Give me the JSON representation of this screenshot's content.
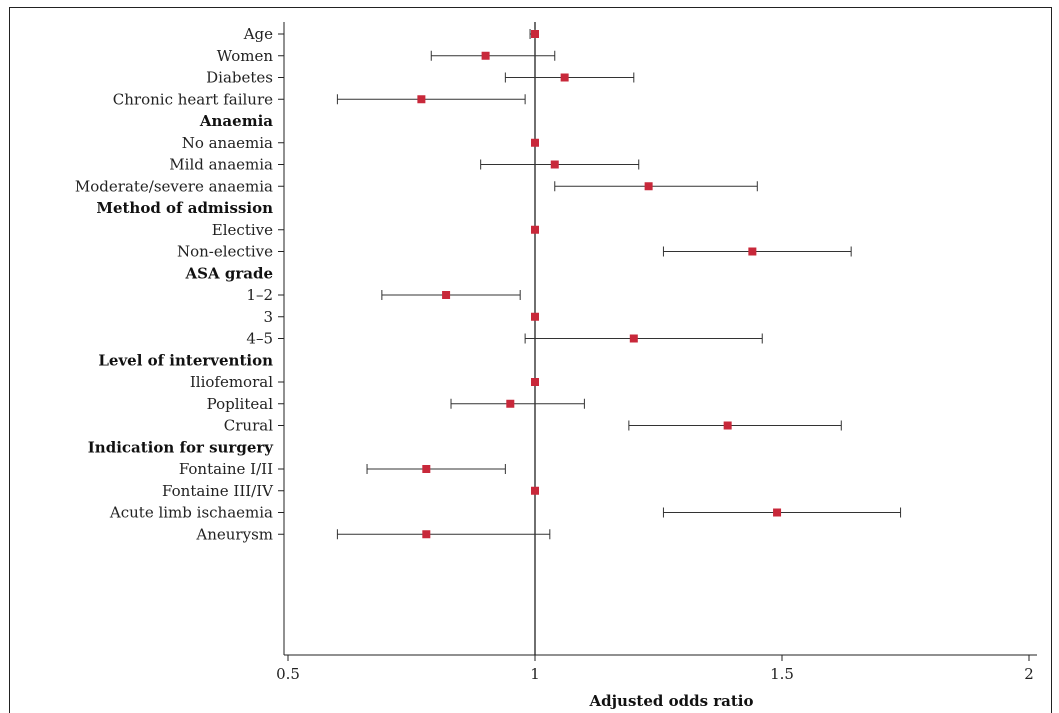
{
  "chart_data": {
    "type": "forest",
    "xlabel": "Adjusted odds ratio",
    "xlim": [
      0.5,
      2
    ],
    "xticks": [
      {
        "value": 0.5,
        "label": "0.5"
      },
      {
        "value": 1,
        "label": "1"
      },
      {
        "value": 1.5,
        "label": "1.5"
      },
      {
        "value": 2,
        "label": "2"
      }
    ],
    "reference_line": 1,
    "marker_color": "#c8283a",
    "rows": [
      {
        "label": "Age",
        "or": 1.0,
        "lo": 0.99,
        "hi": 1.0
      },
      {
        "label": "Women",
        "or": 0.9,
        "lo": 0.79,
        "hi": 1.04
      },
      {
        "label": "Diabetes",
        "or": 1.06,
        "lo": 0.94,
        "hi": 1.2
      },
      {
        "label": "Chronic heart failure",
        "or": 0.77,
        "lo": 0.6,
        "hi": 0.98
      },
      {
        "header": "Anaemia"
      },
      {
        "label": "No anaemia",
        "or": 1.0
      },
      {
        "label": "Mild anaemia",
        "or": 1.04,
        "lo": 0.89,
        "hi": 1.21
      },
      {
        "label": "Moderate/severe anaemia",
        "or": 1.23,
        "lo": 1.04,
        "hi": 1.45
      },
      {
        "header": "Method of admission"
      },
      {
        "label": "Elective",
        "or": 1.0
      },
      {
        "label": "Non-elective",
        "or": 1.44,
        "lo": 1.26,
        "hi": 1.64
      },
      {
        "header": "ASA grade"
      },
      {
        "label": "1–2",
        "or": 0.82,
        "lo": 0.69,
        "hi": 0.97
      },
      {
        "label": "3",
        "or": 1.0
      },
      {
        "label": "4–5",
        "or": 1.2,
        "lo": 0.98,
        "hi": 1.46
      },
      {
        "header": "Level of intervention"
      },
      {
        "label": "Iliofemoral",
        "or": 1.0
      },
      {
        "label": "Popliteal",
        "or": 0.95,
        "lo": 0.83,
        "hi": 1.1
      },
      {
        "label": "Crural",
        "or": 1.39,
        "lo": 1.19,
        "hi": 1.62
      },
      {
        "header": "Indication for surgery"
      },
      {
        "label": "Fontaine I/II",
        "or": 0.78,
        "lo": 0.66,
        "hi": 0.94
      },
      {
        "label": "Fontaine III/IV",
        "or": 1.0
      },
      {
        "label": "Acute limb ischaemia",
        "or": 1.49,
        "lo": 1.26,
        "hi": 1.74
      },
      {
        "label": "Aneurysm",
        "or": 0.78,
        "lo": 0.6,
        "hi": 1.03
      }
    ]
  }
}
